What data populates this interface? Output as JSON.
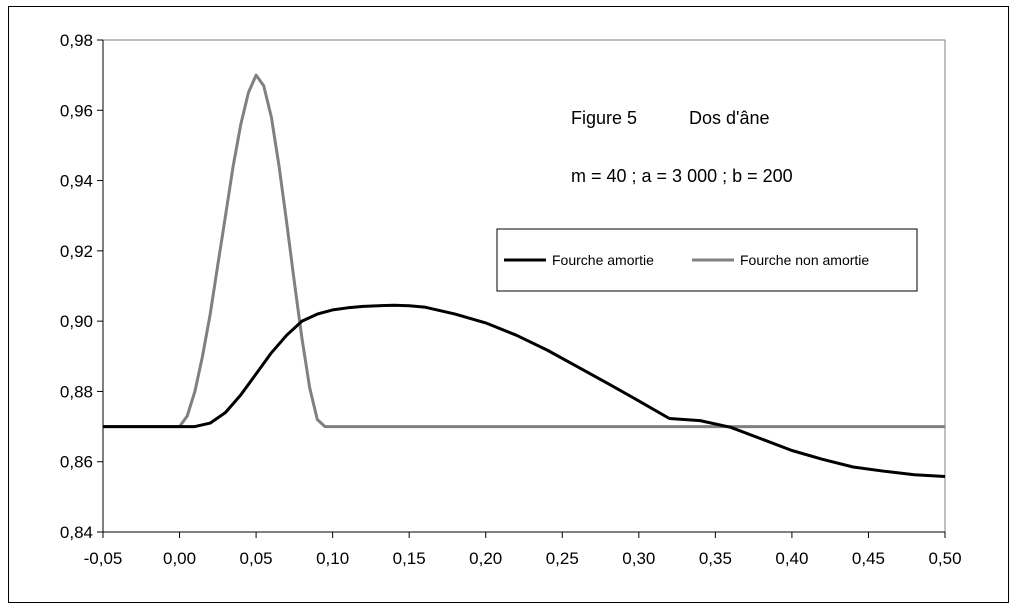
{
  "chart_data": {
    "type": "line",
    "title": "",
    "annotations": {
      "figure_label": "Figure 5",
      "figure_title": "Dos d'âne",
      "parameters": "m = 40 ; a = 3 000 ; b = 200"
    },
    "xlabel": "",
    "ylabel": "",
    "xlim": [
      -0.05,
      0.5
    ],
    "ylim": [
      0.84,
      0.98
    ],
    "x_ticks": [
      "-0,05",
      "0,00",
      "0,05",
      "0,10",
      "0,15",
      "0,20",
      "0,25",
      "0,30",
      "0,35",
      "0,40",
      "0,45",
      "0,50"
    ],
    "y_ticks": [
      "0,84",
      "0,86",
      "0,88",
      "0,90",
      "0,92",
      "0,94",
      "0,96",
      "0,98"
    ],
    "grid": false,
    "legend_position": "right",
    "series": [
      {
        "name": "Fourche amortie",
        "color": "#000000",
        "x": [
          -0.05,
          0.0,
          0.01,
          0.02,
          0.03,
          0.04,
          0.05,
          0.06,
          0.07,
          0.08,
          0.09,
          0.1,
          0.11,
          0.12,
          0.13,
          0.14,
          0.15,
          0.16,
          0.18,
          0.2,
          0.22,
          0.24,
          0.26,
          0.28,
          0.3,
          0.32,
          0.34,
          0.36,
          0.38,
          0.4,
          0.42,
          0.44,
          0.46,
          0.48,
          0.5
        ],
        "y": [
          0.87,
          0.87,
          0.87,
          0.871,
          0.874,
          0.879,
          0.885,
          0.891,
          0.896,
          0.9,
          0.902,
          0.9032,
          0.9038,
          0.9042,
          0.9044,
          0.9045,
          0.9044,
          0.904,
          0.902,
          0.8995,
          0.896,
          0.8918,
          0.887,
          0.8822,
          0.8773,
          0.8723,
          0.8717,
          0.8698,
          0.8665,
          0.8632,
          0.8607,
          0.8585,
          0.8573,
          0.8563,
          0.8558
        ]
      },
      {
        "name": "Fourche non amortie",
        "color": "#808080",
        "x": [
          -0.05,
          0.0,
          0.005,
          0.01,
          0.015,
          0.02,
          0.025,
          0.03,
          0.035,
          0.04,
          0.045,
          0.05,
          0.055,
          0.06,
          0.065,
          0.07,
          0.075,
          0.08,
          0.085,
          0.09,
          0.095,
          0.1,
          0.15,
          0.2,
          0.25,
          0.3,
          0.35,
          0.4,
          0.45,
          0.5
        ],
        "y": [
          0.87,
          0.87,
          0.873,
          0.88,
          0.89,
          0.902,
          0.916,
          0.93,
          0.944,
          0.956,
          0.965,
          0.97,
          0.967,
          0.958,
          0.944,
          0.928,
          0.911,
          0.895,
          0.881,
          0.872,
          0.87,
          0.87,
          0.87,
          0.87,
          0.87,
          0.87,
          0.87,
          0.87,
          0.87,
          0.87
        ]
      }
    ]
  }
}
